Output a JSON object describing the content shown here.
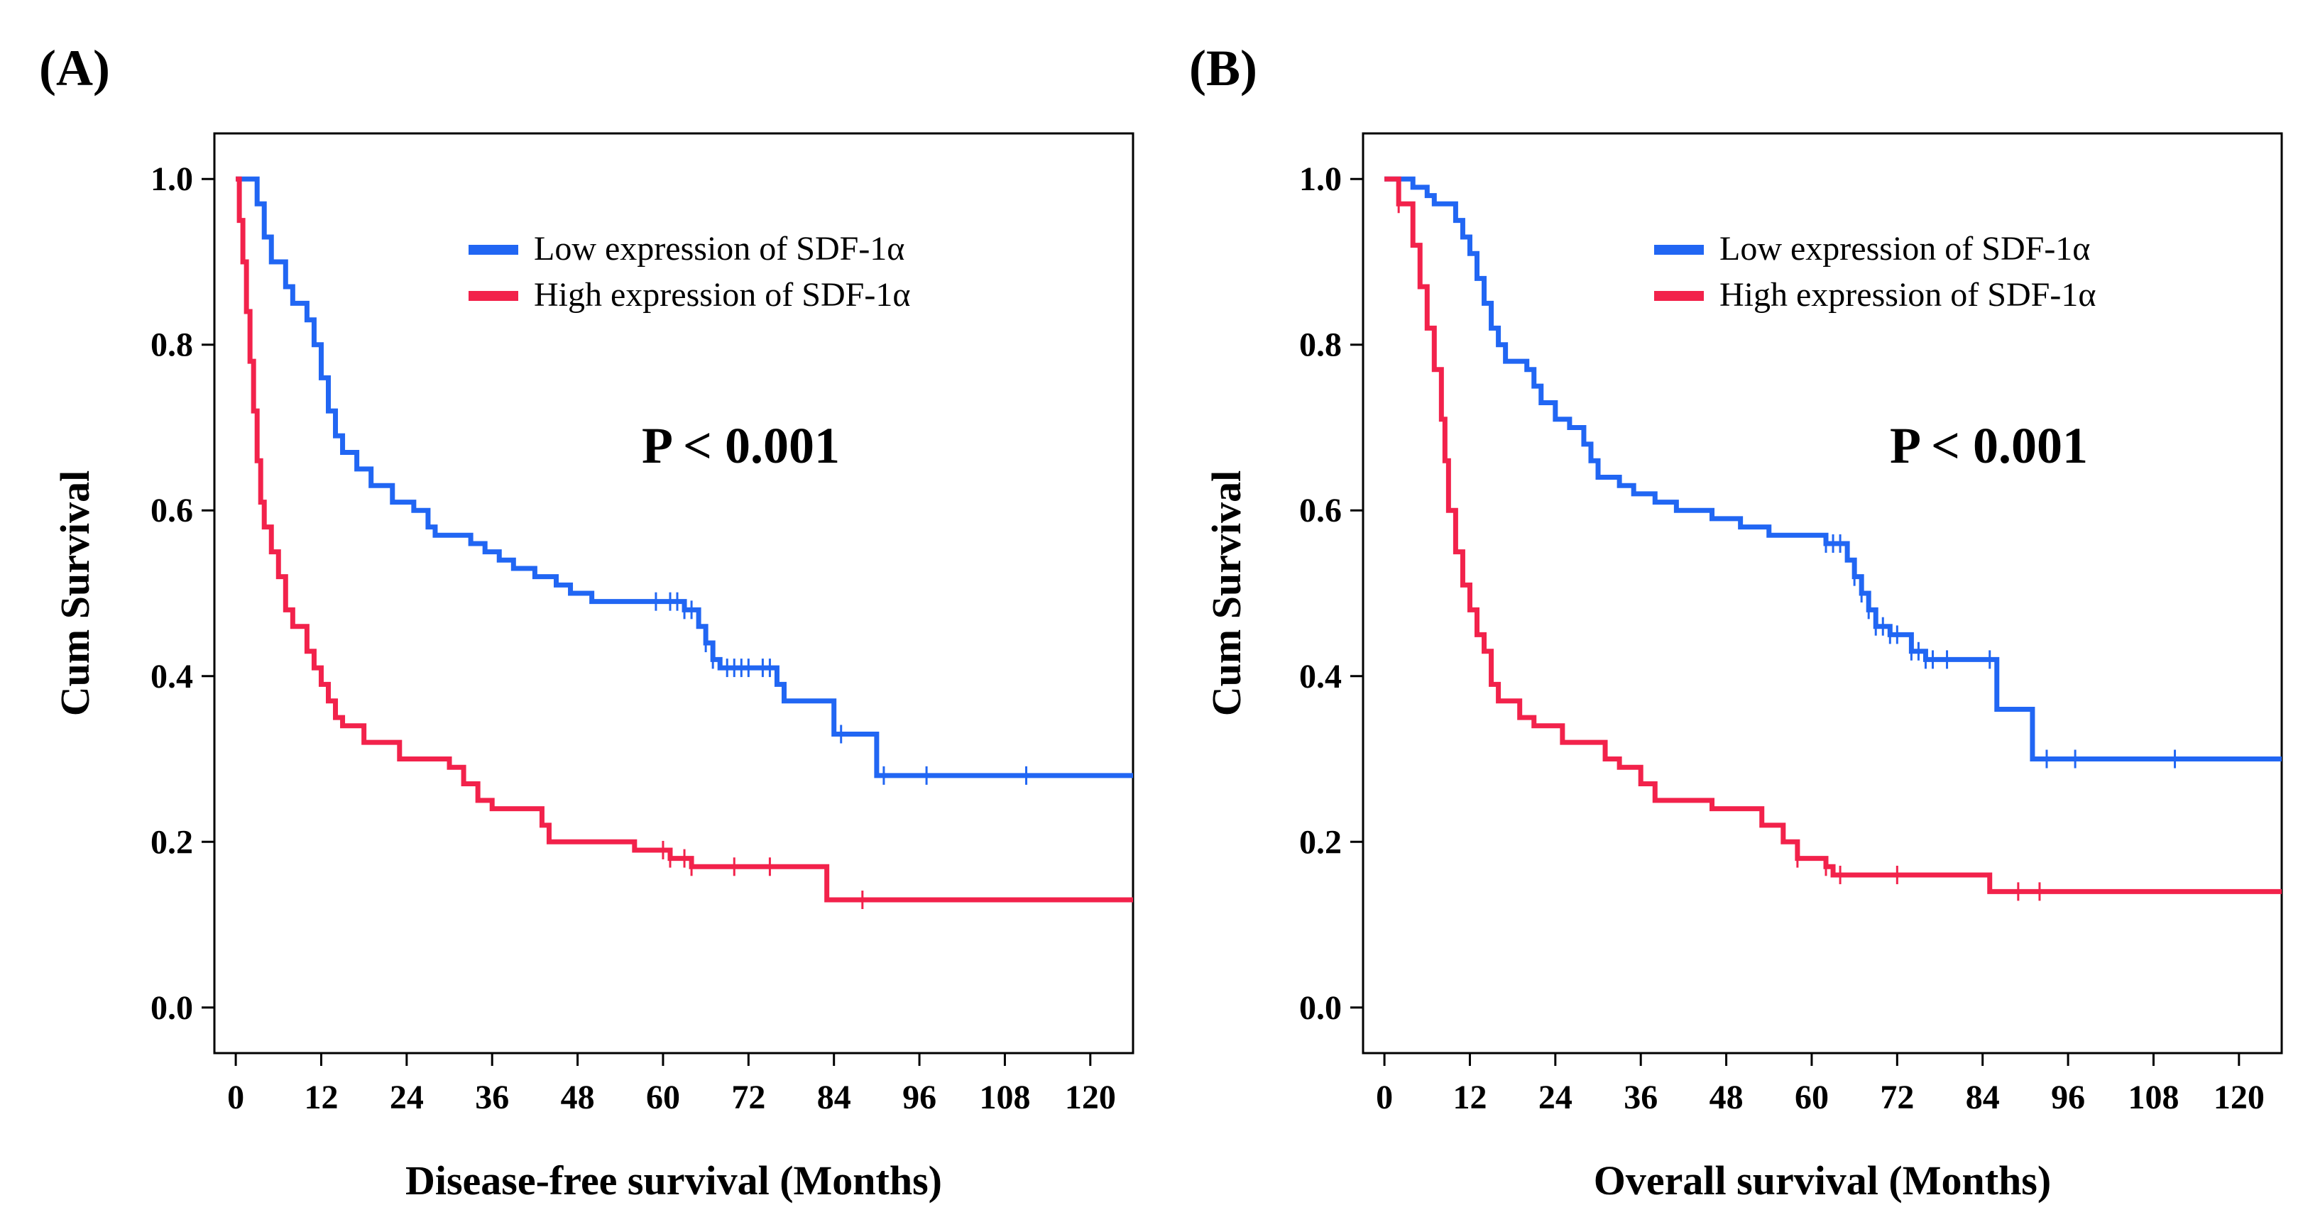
{
  "colors": {
    "low": "#2166f3",
    "high": "#f2224b"
  },
  "chart_data": [
    {
      "type": "line",
      "panel_label": "(A)",
      "xlabel": "Disease-free survival (Months)",
      "ylabel": "Cum Survival",
      "xlim": [
        -3,
        126
      ],
      "ylim": [
        -0.055,
        1.055
      ],
      "x_ticks": [
        0,
        12,
        24,
        36,
        48,
        60,
        72,
        84,
        96,
        108,
        120
      ],
      "y_ticks": [
        0.0,
        0.2,
        0.4,
        0.6,
        0.8,
        1.0
      ],
      "y_tick_labels": [
        "0.0",
        "0.2",
        "0.4",
        "0.6",
        "0.8",
        "1.0"
      ],
      "annotation": "P < 0.001",
      "legend_position": "top-right",
      "series": [
        {
          "name": "Low expression of SDF-1α",
          "color_key": "low",
          "steps": [
            [
              0,
              1.0
            ],
            [
              3,
              0.97
            ],
            [
              4,
              0.93
            ],
            [
              5,
              0.9
            ],
            [
              7,
              0.87
            ],
            [
              8,
              0.85
            ],
            [
              10,
              0.83
            ],
            [
              11,
              0.8
            ],
            [
              12,
              0.76
            ],
            [
              13,
              0.72
            ],
            [
              14,
              0.69
            ],
            [
              15,
              0.67
            ],
            [
              17,
              0.65
            ],
            [
              19,
              0.63
            ],
            [
              22,
              0.61
            ],
            [
              25,
              0.6
            ],
            [
              27,
              0.58
            ],
            [
              28,
              0.57
            ],
            [
              33,
              0.56
            ],
            [
              35,
              0.55
            ],
            [
              37,
              0.54
            ],
            [
              39,
              0.53
            ],
            [
              42,
              0.52
            ],
            [
              45,
              0.51
            ],
            [
              47,
              0.5
            ],
            [
              50,
              0.49
            ],
            [
              63,
              0.48
            ],
            [
              65,
              0.46
            ],
            [
              66,
              0.44
            ],
            [
              67,
              0.42
            ],
            [
              68,
              0.41
            ],
            [
              76,
              0.39
            ],
            [
              77,
              0.37
            ],
            [
              84,
              0.33
            ],
            [
              90,
              0.28
            ],
            [
              126,
              0.28
            ]
          ],
          "censored_x": [
            59,
            61,
            62,
            63,
            64,
            66,
            67,
            69,
            70,
            71,
            72,
            74,
            75,
            85,
            91,
            97,
            111
          ]
        },
        {
          "name": "High expression of SDF-1α",
          "color_key": "high",
          "steps": [
            [
              0,
              1.0
            ],
            [
              0.5,
              0.95
            ],
            [
              1,
              0.9
            ],
            [
              1.5,
              0.84
            ],
            [
              2,
              0.78
            ],
            [
              2.5,
              0.72
            ],
            [
              3,
              0.66
            ],
            [
              3.5,
              0.61
            ],
            [
              4,
              0.58
            ],
            [
              5,
              0.55
            ],
            [
              6,
              0.52
            ],
            [
              7,
              0.48
            ],
            [
              8,
              0.46
            ],
            [
              10,
              0.43
            ],
            [
              11,
              0.41
            ],
            [
              12,
              0.39
            ],
            [
              13,
              0.37
            ],
            [
              14,
              0.35
            ],
            [
              15,
              0.34
            ],
            [
              18,
              0.32
            ],
            [
              23,
              0.3
            ],
            [
              30,
              0.29
            ],
            [
              32,
              0.27
            ],
            [
              34,
              0.25
            ],
            [
              36,
              0.24
            ],
            [
              43,
              0.22
            ],
            [
              44,
              0.2
            ],
            [
              56,
              0.19
            ],
            [
              61,
              0.18
            ],
            [
              64,
              0.17
            ],
            [
              83,
              0.13
            ],
            [
              126,
              0.13
            ]
          ],
          "censored_x": [
            60,
            61,
            63,
            64,
            70,
            75,
            88
          ]
        }
      ]
    },
    {
      "type": "line",
      "panel_label": "(B)",
      "xlabel": "Overall survival (Months)",
      "ylabel": "Cum Survival",
      "xlim": [
        -3,
        126
      ],
      "ylim": [
        -0.055,
        1.055
      ],
      "x_ticks": [
        0,
        12,
        24,
        36,
        48,
        60,
        72,
        84,
        96,
        108,
        120
      ],
      "y_ticks": [
        0.0,
        0.2,
        0.4,
        0.6,
        0.8,
        1.0
      ],
      "y_tick_labels": [
        "0.0",
        "0.2",
        "0.4",
        "0.6",
        "0.8",
        "1.0"
      ],
      "annotation": "P < 0.001",
      "legend_position": "top-right",
      "series": [
        {
          "name": "Low expression of SDF-1α",
          "color_key": "low",
          "steps": [
            [
              0,
              1.0
            ],
            [
              4,
              0.99
            ],
            [
              6,
              0.98
            ],
            [
              7,
              0.97
            ],
            [
              10,
              0.95
            ],
            [
              11,
              0.93
            ],
            [
              12,
              0.91
            ],
            [
              13,
              0.88
            ],
            [
              14,
              0.85
            ],
            [
              15,
              0.82
            ],
            [
              16,
              0.8
            ],
            [
              17,
              0.78
            ],
            [
              20,
              0.77
            ],
            [
              21,
              0.75
            ],
            [
              22,
              0.73
            ],
            [
              24,
              0.71
            ],
            [
              26,
              0.7
            ],
            [
              28,
              0.68
            ],
            [
              29,
              0.66
            ],
            [
              30,
              0.64
            ],
            [
              33,
              0.63
            ],
            [
              35,
              0.62
            ],
            [
              38,
              0.61
            ],
            [
              41,
              0.6
            ],
            [
              46,
              0.59
            ],
            [
              50,
              0.58
            ],
            [
              54,
              0.57
            ],
            [
              62,
              0.56
            ],
            [
              65,
              0.54
            ],
            [
              66,
              0.52
            ],
            [
              67,
              0.5
            ],
            [
              68,
              0.48
            ],
            [
              69,
              0.46
            ],
            [
              71,
              0.45
            ],
            [
              74,
              0.43
            ],
            [
              76,
              0.42
            ],
            [
              86,
              0.36
            ],
            [
              91,
              0.3
            ],
            [
              126,
              0.3
            ]
          ],
          "censored_x": [
            62,
            63,
            64,
            66,
            67,
            68,
            69,
            70,
            71,
            72,
            74,
            75,
            76,
            77,
            79,
            85,
            93,
            97,
            111
          ]
        },
        {
          "name": "High expression of SDF-1α",
          "color_key": "high",
          "steps": [
            [
              0,
              1.0
            ],
            [
              2,
              0.97
            ],
            [
              4,
              0.92
            ],
            [
              5,
              0.87
            ],
            [
              6,
              0.82
            ],
            [
              7,
              0.77
            ],
            [
              8,
              0.71
            ],
            [
              8.5,
              0.66
            ],
            [
              9,
              0.6
            ],
            [
              10,
              0.55
            ],
            [
              11,
              0.51
            ],
            [
              12,
              0.48
            ],
            [
              13,
              0.45
            ],
            [
              14,
              0.43
            ],
            [
              15,
              0.39
            ],
            [
              16,
              0.37
            ],
            [
              19,
              0.35
            ],
            [
              21,
              0.34
            ],
            [
              25,
              0.32
            ],
            [
              31,
              0.3
            ],
            [
              33,
              0.29
            ],
            [
              36,
              0.27
            ],
            [
              38,
              0.25
            ],
            [
              46,
              0.24
            ],
            [
              53,
              0.22
            ],
            [
              56,
              0.2
            ],
            [
              58,
              0.18
            ],
            [
              62,
              0.17
            ],
            [
              63,
              0.16
            ],
            [
              85,
              0.14
            ],
            [
              126,
              0.14
            ]
          ],
          "censored_x": [
            2,
            58,
            62,
            64,
            72,
            89,
            92
          ]
        }
      ]
    }
  ]
}
